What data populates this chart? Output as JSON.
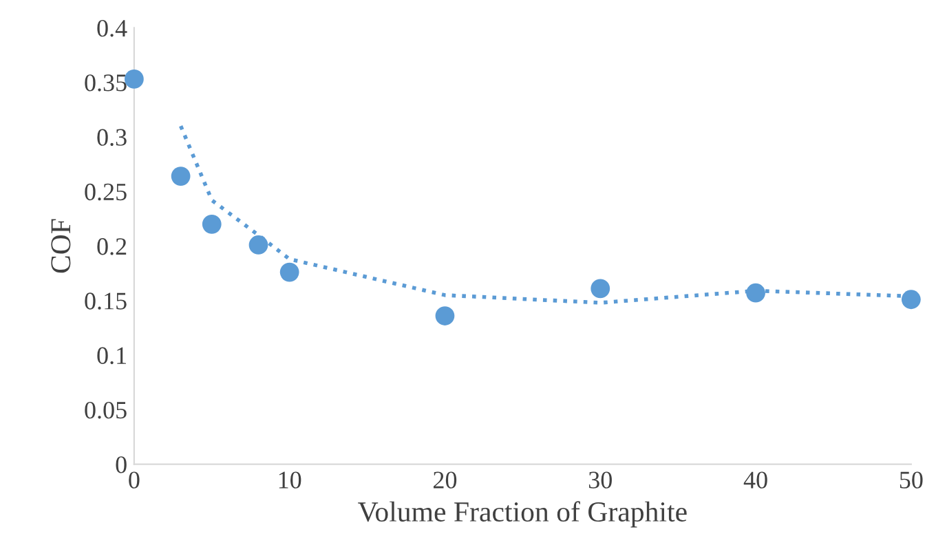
{
  "chart_data": {
    "type": "scatter",
    "xlabel": "Volume Fraction of Graphite",
    "ylabel": "COF",
    "xlim": [
      0,
      50
    ],
    "xticks": [
      0,
      10,
      20,
      30,
      40,
      50
    ],
    "ylim": [
      0,
      0.4
    ],
    "yticks": [
      0,
      0.05,
      0.1,
      0.15,
      0.2,
      0.25,
      0.3,
      0.35,
      0.4
    ],
    "grid": false,
    "series": [
      {
        "marker": "circle",
        "color": "#5b9bd5",
        "x": [
          0,
          3,
          5,
          8,
          10,
          20,
          30,
          40,
          50
        ],
        "values": [
          0.353,
          0.264,
          0.22,
          0.201,
          0.176,
          0.136,
          0.161,
          0.157,
          0.151
        ]
      },
      {
        "type": "line",
        "color": "#5b9bd5",
        "line_style": "dotted",
        "x": [
          3,
          5,
          8,
          10,
          20,
          30,
          40,
          50
        ],
        "values": [
          0.31,
          0.242,
          0.21,
          0.188,
          0.155,
          0.148,
          0.159,
          0.154
        ]
      }
    ]
  }
}
